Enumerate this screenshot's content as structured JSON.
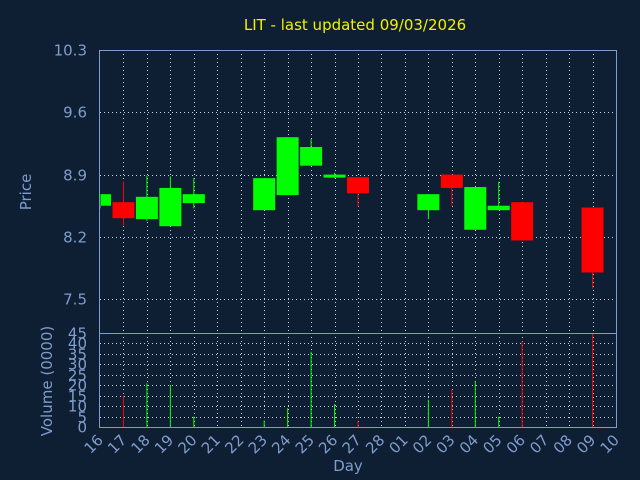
{
  "chart_data": {
    "type": "candlestick",
    "title": "LIT - last updated 09/03/2026",
    "xlabel": "Day",
    "price": {
      "ylabel": "Price",
      "ylim": [
        7.12,
        10.3
      ],
      "ticks": [
        "10.3",
        "9.6",
        "8.9",
        "8.2",
        "7.5"
      ],
      "tick_values": [
        10.3,
        9.6,
        8.9,
        8.2,
        7.5
      ]
    },
    "volume": {
      "ylabel": "Volume (0000)",
      "ylim": [
        0,
        45
      ],
      "ticks": [
        "45",
        "40",
        "35",
        "30",
        "25",
        "20",
        "15",
        "10",
        "5",
        "0"
      ],
      "tick_values": [
        45,
        40,
        35,
        30,
        25,
        20,
        15,
        10,
        5,
        0
      ]
    },
    "days": [
      "16",
      "17",
      "18",
      "19",
      "20",
      "21",
      "22",
      "23",
      "24",
      "25",
      "26",
      "27",
      "28",
      "01",
      "02",
      "03",
      "04",
      "05",
      "06",
      "07",
      "08",
      "09",
      "10"
    ],
    "up_color": "#00ff00",
    "down_color": "#ff0000",
    "candles": [
      {
        "day": "16",
        "open": 8.55,
        "high": 8.68,
        "low": 8.52,
        "close": 8.68,
        "volume": 0
      },
      {
        "day": "17",
        "open": 8.59,
        "high": 8.82,
        "low": 8.33,
        "close": 8.41,
        "volume": 15
      },
      {
        "day": "18",
        "open": 8.4,
        "high": 8.89,
        "low": 8.38,
        "close": 8.65,
        "volume": 21
      },
      {
        "day": "19",
        "open": 8.32,
        "high": 8.88,
        "low": 8.32,
        "close": 8.75,
        "volume": 20
      },
      {
        "day": "20",
        "open": 8.58,
        "high": 8.86,
        "low": 8.52,
        "close": 8.68,
        "volume": 5
      },
      {
        "day": "23",
        "open": 8.5,
        "high": 8.86,
        "low": 8.5,
        "close": 8.86,
        "volume": 3
      },
      {
        "day": "24",
        "open": 8.67,
        "high": 9.32,
        "low": 8.67,
        "close": 9.32,
        "volume": 9
      },
      {
        "day": "25",
        "open": 9.0,
        "high": 9.3,
        "low": 9.0,
        "close": 9.21,
        "volume": 36
      },
      {
        "day": "26",
        "open": 8.87,
        "high": 8.92,
        "low": 8.86,
        "close": 8.9,
        "volume": 11
      },
      {
        "day": "27",
        "open": 8.87,
        "high": 8.87,
        "low": 8.54,
        "close": 8.69,
        "volume": 3
      },
      {
        "day": "02",
        "open": 8.5,
        "high": 8.68,
        "low": 8.4,
        "close": 8.68,
        "volume": 13
      },
      {
        "day": "03",
        "open": 8.9,
        "high": 8.9,
        "low": 8.55,
        "close": 8.75,
        "volume": 18
      },
      {
        "day": "04",
        "open": 8.28,
        "high": 8.76,
        "low": 8.28,
        "close": 8.76,
        "volume": 22
      },
      {
        "day": "05",
        "open": 8.5,
        "high": 8.82,
        "low": 8.5,
        "close": 8.55,
        "volume": 5
      },
      {
        "day": "06",
        "open": 8.59,
        "high": 8.59,
        "low": 8.16,
        "close": 8.16,
        "volume": 41
      },
      {
        "day": "09",
        "open": 8.53,
        "high": 8.53,
        "low": 7.62,
        "close": 7.8,
        "volume": 45
      }
    ]
  }
}
